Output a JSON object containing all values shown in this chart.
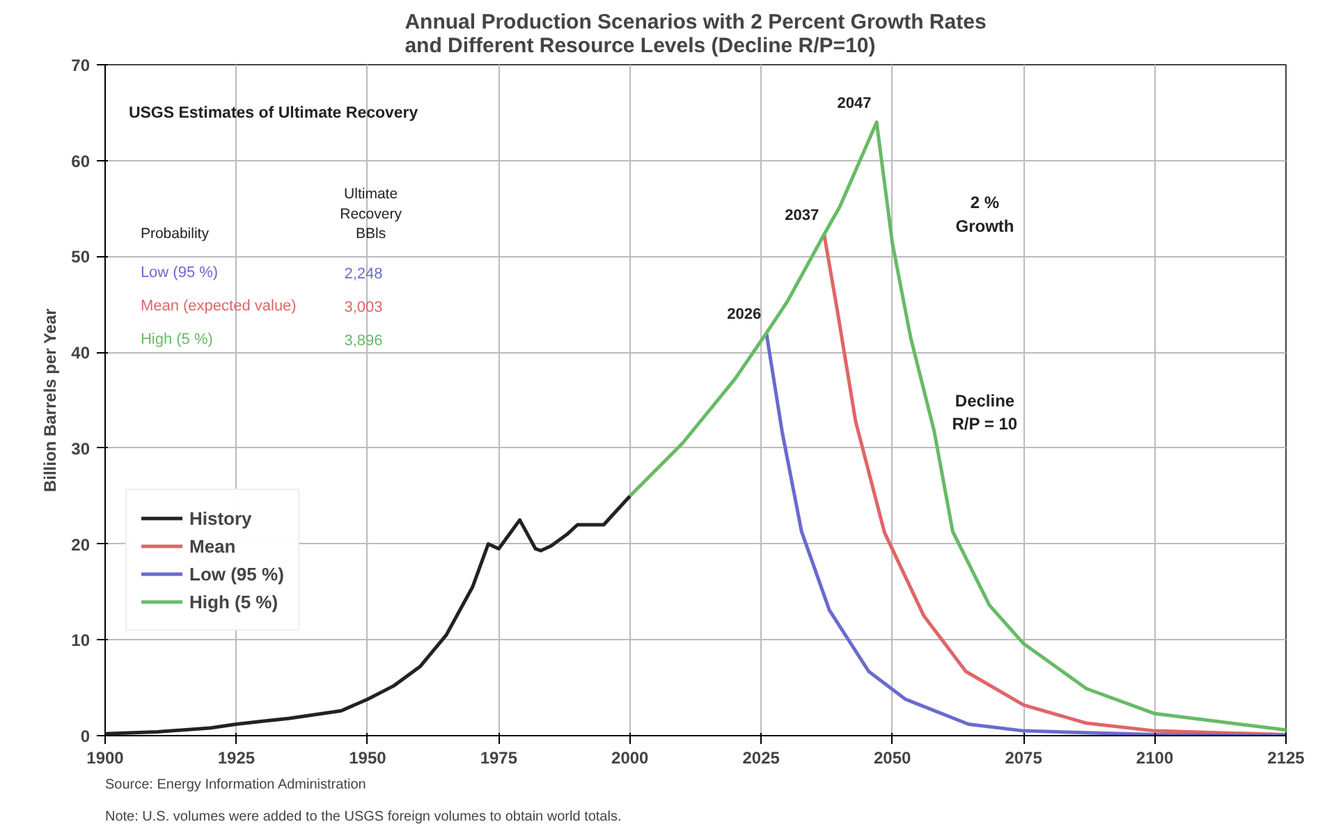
{
  "chart_data": {
    "type": "line",
    "title": "Annual Production Scenarios with 2 Percent Growth Rates\nand Different Resource Levels (Decline R/P=10)",
    "ylabel": "Billion Barrels per Year",
    "xlim": [
      1900,
      2125
    ],
    "xticks": [
      1900,
      1925,
      1950,
      1975,
      2000,
      2025,
      2050,
      2075,
      2100,
      2125
    ],
    "ylim": [
      0,
      70
    ],
    "yticks": [
      0,
      10,
      20,
      30,
      40,
      50,
      60,
      70
    ],
    "grid": true,
    "legend": "left",
    "line_style": "solid",
    "marker": "none",
    "series": [
      {
        "name": "History",
        "color": "#222222",
        "x": [
          1900,
          1910,
          1920,
          1925,
          1930,
          1935,
          1940,
          1945,
          1950,
          1955,
          1960,
          1965,
          1970,
          1973,
          1975,
          1977,
          1979,
          1980,
          1982,
          1983,
          1985,
          1988,
          1990,
          1995,
          2000
        ],
        "values": [
          0.2,
          0.4,
          0.8,
          1.2,
          1.5,
          1.8,
          2.2,
          2.6,
          3.8,
          5.2,
          7.2,
          10.5,
          15.5,
          20,
          19.5,
          21,
          22.5,
          21.5,
          19.5,
          19.3,
          19.8,
          21,
          22,
          22,
          25
        ]
      },
      {
        "name": "Mean",
        "color": "#e06666",
        "x": [
          2037,
          2039.5,
          2043,
          2048.5,
          2056,
          2064,
          2075,
          2087,
          2100,
          2125
        ],
        "values": [
          52.3,
          44.4,
          32.8,
          21.2,
          12.5,
          6.7,
          3.2,
          1.3,
          0.5,
          0.1
        ]
      },
      {
        "name": "Low (95 %)",
        "color": "#6a6acf",
        "x": [
          2026,
          2029,
          2032.7,
          2038,
          2045.5,
          2052.5,
          2064.5,
          2075,
          2100,
          2125
        ],
        "values": [
          42,
          31.7,
          21.3,
          13.1,
          6.7,
          3.8,
          1.2,
          0.5,
          0.1,
          0
        ]
      },
      {
        "name": "High (5 %)",
        "color": "#66bb66",
        "x": [
          2000,
          2010,
          2020,
          2026,
          2030,
          2037,
          2040,
          2047,
          2050,
          2053.5,
          2058,
          2061.5,
          2068.5,
          2075,
          2087,
          2100,
          2125
        ],
        "values": [
          25,
          30.5,
          37.2,
          42,
          45.3,
          52.3,
          55.2,
          64,
          51.4,
          41.5,
          31.7,
          21.3,
          13.6,
          9.6,
          4.9,
          2.3,
          0.6
        ]
      }
    ],
    "annotations": [
      "USGS Estimates of Ultimate Recovery",
      "Probability",
      "Ultimate\nRecovery\nBBls",
      "Low (95 %)",
      "2,248",
      "Mean (expected value)",
      "3,003",
      "High (5 %)",
      "3,896",
      "2 %\nGrowth",
      "Decline\nR/P = 10",
      {
        "text": "2026",
        "x": 2026,
        "y": 42
      },
      {
        "text": "2037",
        "x": 2037,
        "y": 52.3
      },
      {
        "text": "2047",
        "x": 2047,
        "y": 64
      },
      "Source:  Energy Information Administration",
      "Note:  U.S. volumes were added to the USGS foreign volumes to obtain world totals."
    ]
  }
}
